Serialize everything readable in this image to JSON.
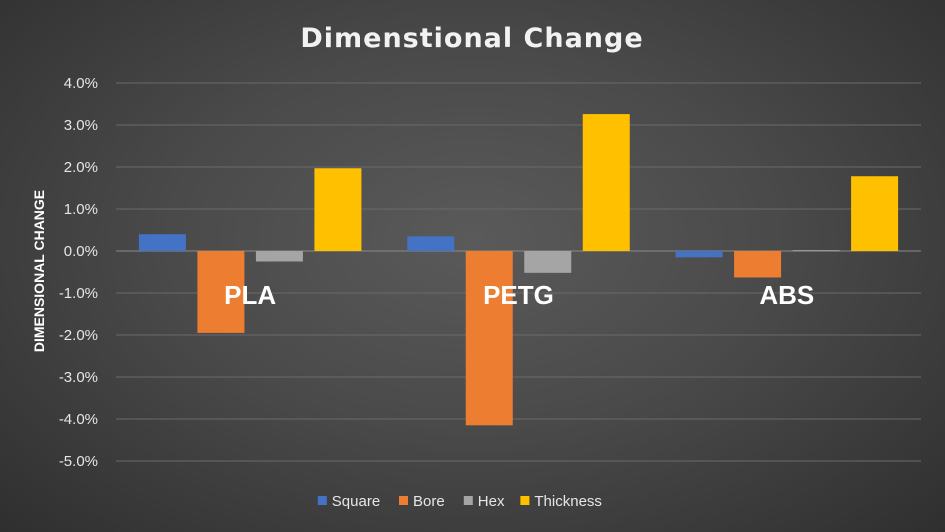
{
  "chart_data": {
    "type": "bar",
    "title": "Dimenstional Change",
    "ylabel": "DIMENSIONAL CHANGE",
    "xlabel": "",
    "categories": [
      "PLA",
      "PETG",
      "ABS"
    ],
    "ylim": [
      -0.05,
      0.04
    ],
    "yticks": [
      0.04,
      0.03,
      0.02,
      0.01,
      0.0,
      -0.01,
      -0.02,
      -0.03,
      -0.04,
      -0.05
    ],
    "ytick_labels": [
      "4.0%",
      "3.0%",
      "2.0%",
      "1.0%",
      "0.0%",
      "-1.0%",
      "-2.0%",
      "-3.0%",
      "-4.0%",
      "-5.0%"
    ],
    "grid": true,
    "legend_position": "bottom",
    "series": [
      {
        "name": "Square",
        "color": "#4472c4",
        "values": [
          0.004,
          0.0035,
          -0.0015
        ]
      },
      {
        "name": "Bore",
        "color": "#ed7d31",
        "values": [
          -0.0195,
          -0.0415,
          -0.0063
        ]
      },
      {
        "name": "Hex",
        "color": "#a5a5a5",
        "values": [
          -0.0025,
          -0.0052,
          0.0002
        ]
      },
      {
        "name": "Thickness",
        "color": "#ffc000",
        "values": [
          0.0197,
          0.0326,
          0.0178
        ]
      }
    ]
  }
}
